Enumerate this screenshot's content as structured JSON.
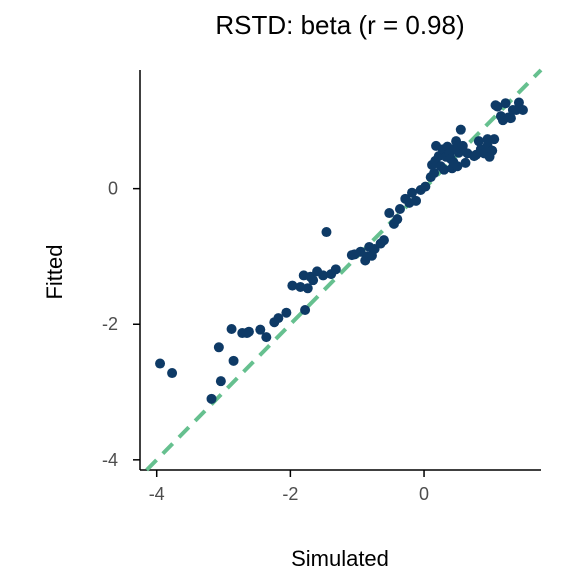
{
  "chart_data": {
    "type": "scatter",
    "title": "RSTD: beta (r = 0.98)",
    "xlabel": "Simulated",
    "ylabel": "Fitted",
    "xlim": [
      -4.25,
      1.75
    ],
    "ylim": [
      -4.15,
      1.75
    ],
    "xticks": [
      -4,
      -2,
      0
    ],
    "yticks": [
      -4,
      -2,
      0
    ],
    "grid": false,
    "legend": "none",
    "colors": {
      "points": "#0e3a66",
      "reference_line": "#66c08f"
    },
    "reference_line": {
      "style": "dashed",
      "slope": 1,
      "intercept": 0
    },
    "points": [
      [
        -3.95,
        -2.58
      ],
      [
        -3.77,
        -2.72
      ],
      [
        -3.18,
        -3.1
      ],
      [
        -3.07,
        -2.34
      ],
      [
        -3.04,
        -2.84
      ],
      [
        -2.88,
        -2.07
      ],
      [
        -2.85,
        -2.54
      ],
      [
        -2.72,
        -2.13
      ],
      [
        -2.65,
        -2.13
      ],
      [
        -2.62,
        -2.11
      ],
      [
        -2.45,
        -2.08
      ],
      [
        -2.36,
        -2.19
      ],
      [
        -2.24,
        -1.97
      ],
      [
        -2.18,
        -1.91
      ],
      [
        -2.06,
        -1.83
      ],
      [
        -1.97,
        -1.43
      ],
      [
        -1.85,
        -1.45
      ],
      [
        -1.8,
        -1.28
      ],
      [
        -1.78,
        -1.79
      ],
      [
        -1.74,
        -1.47
      ],
      [
        -1.7,
        -1.3
      ],
      [
        -1.66,
        -1.35
      ],
      [
        -1.6,
        -1.22
      ],
      [
        -1.51,
        -1.28
      ],
      [
        -1.46,
        -0.64
      ],
      [
        -1.39,
        -1.26
      ],
      [
        -1.32,
        -1.19
      ],
      [
        -1.08,
        -0.98
      ],
      [
        -1.04,
        -0.97
      ],
      [
        -0.95,
        -0.93
      ],
      [
        -0.88,
        -1.06
      ],
      [
        -0.86,
        -1.0
      ],
      [
        -0.82,
        -0.86
      ],
      [
        -0.78,
        -0.99
      ],
      [
        -0.74,
        -0.89
      ],
      [
        -0.65,
        -0.81
      ],
      [
        -0.6,
        -0.76
      ],
      [
        -0.52,
        -0.36
      ],
      [
        -0.45,
        -0.52
      ],
      [
        -0.4,
        -0.45
      ],
      [
        -0.36,
        -0.3
      ],
      [
        -0.28,
        -0.15
      ],
      [
        -0.22,
        -0.21
      ],
      [
        -0.18,
        -0.06
      ],
      [
        -0.12,
        -0.18
      ],
      [
        -0.05,
        -0.02
      ],
      [
        0.02,
        0.03
      ],
      [
        0.1,
        0.17
      ],
      [
        0.15,
        0.23
      ],
      [
        0.12,
        0.35
      ],
      [
        0.17,
        0.41
      ],
      [
        0.18,
        0.63
      ],
      [
        0.22,
        0.48
      ],
      [
        0.25,
        0.33
      ],
      [
        0.28,
        0.58
      ],
      [
        0.3,
        0.28
      ],
      [
        0.33,
        0.47
      ],
      [
        0.35,
        0.62
      ],
      [
        0.38,
        0.52
      ],
      [
        0.4,
        0.44
      ],
      [
        0.42,
        0.3
      ],
      [
        0.44,
        0.39
      ],
      [
        0.46,
        0.59
      ],
      [
        0.48,
        0.7
      ],
      [
        0.5,
        0.33
      ],
      [
        0.52,
        0.53
      ],
      [
        0.55,
        0.87
      ],
      [
        0.58,
        0.63
      ],
      [
        0.62,
        0.38
      ],
      [
        0.65,
        0.52
      ],
      [
        0.75,
        0.48
      ],
      [
        0.78,
        0.5
      ],
      [
        0.82,
        0.7
      ],
      [
        0.85,
        0.58
      ],
      [
        0.9,
        0.52
      ],
      [
        0.95,
        0.63
      ],
      [
        0.98,
        0.47
      ],
      [
        1.02,
        0.56
      ],
      [
        1.05,
        0.73
      ],
      [
        1.07,
        1.23
      ],
      [
        1.1,
        1.21
      ],
      [
        1.15,
        1.07
      ],
      [
        1.18,
        1.01
      ],
      [
        1.22,
        1.26
      ],
      [
        1.26,
        1.05
      ],
      [
        1.3,
        1.04
      ],
      [
        1.33,
        1.16
      ],
      [
        1.38,
        1.16
      ],
      [
        1.42,
        1.27
      ],
      [
        1.48,
        1.16
      ],
      [
        0.95,
        0.73
      ]
    ]
  }
}
